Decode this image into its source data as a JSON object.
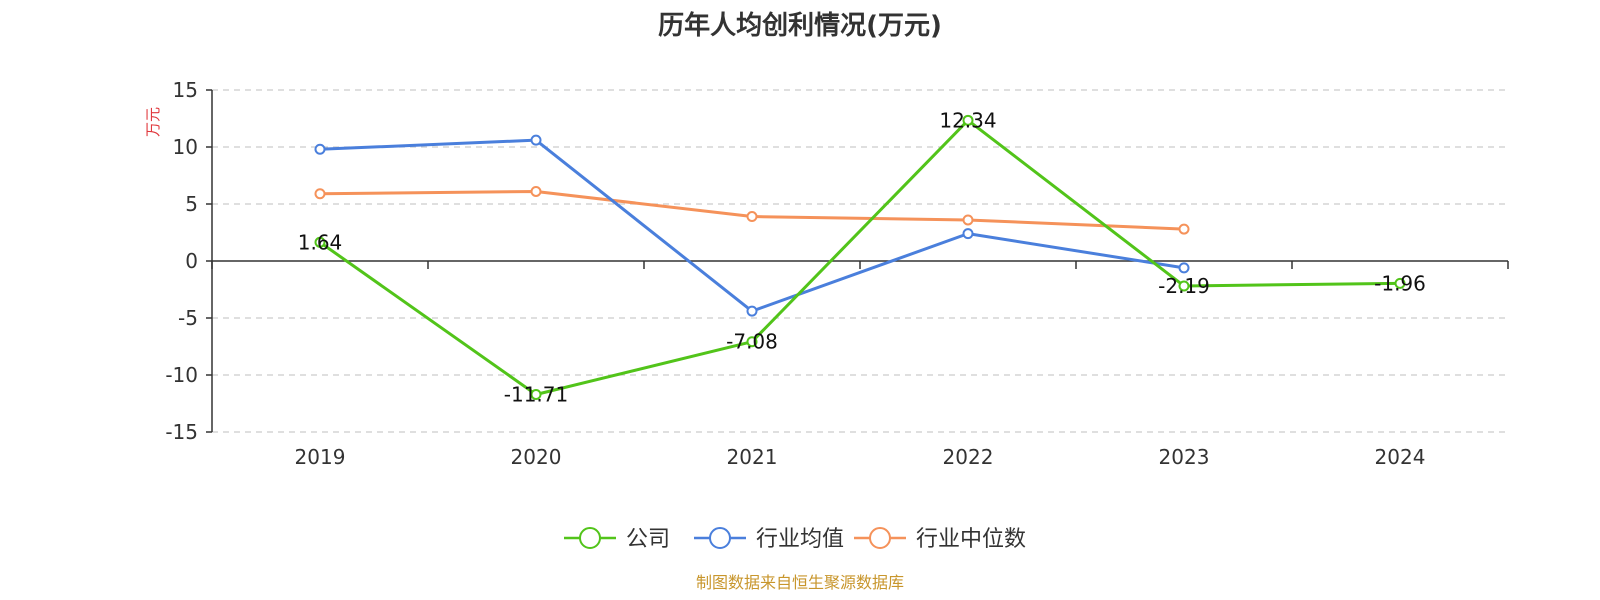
{
  "colors": {
    "company": "#52c41a",
    "industry_avg": "#4a7fdc",
    "industry_median": "#f5925a",
    "axis": "#333333",
    "grid": "#cccccc",
    "y_unit": "#e0393e",
    "source": "#c8962c"
  },
  "source_text": "制图数据来自恒生聚源数据库",
  "chart_data": {
    "type": "line",
    "title": "历年人均创利情况(万元)",
    "ylabel": "万元",
    "xlabel": "",
    "categories": [
      "2019",
      "2020",
      "2021",
      "2022",
      "2023",
      "2024"
    ],
    "ylim": [
      -15,
      15
    ],
    "yticks": [
      15,
      10,
      5,
      0,
      -5,
      -10,
      -15
    ],
    "grid": true,
    "legend_position": "bottom",
    "series": [
      {
        "name": "公司",
        "color_key": "company",
        "values": [
          1.64,
          -11.71,
          -7.08,
          12.34,
          -2.19,
          -1.96
        ],
        "labels": [
          "1.64",
          "-11.71",
          "-7.08",
          "12.34",
          "-2.19",
          "-1.96"
        ]
      },
      {
        "name": "行业均值",
        "color_key": "industry_avg",
        "values": [
          9.8,
          10.6,
          -4.4,
          2.4,
          -0.6,
          null
        ],
        "labels": []
      },
      {
        "name": "行业中位数",
        "color_key": "industry_median",
        "values": [
          5.9,
          6.1,
          3.9,
          3.6,
          2.8,
          null
        ],
        "labels": []
      }
    ]
  }
}
